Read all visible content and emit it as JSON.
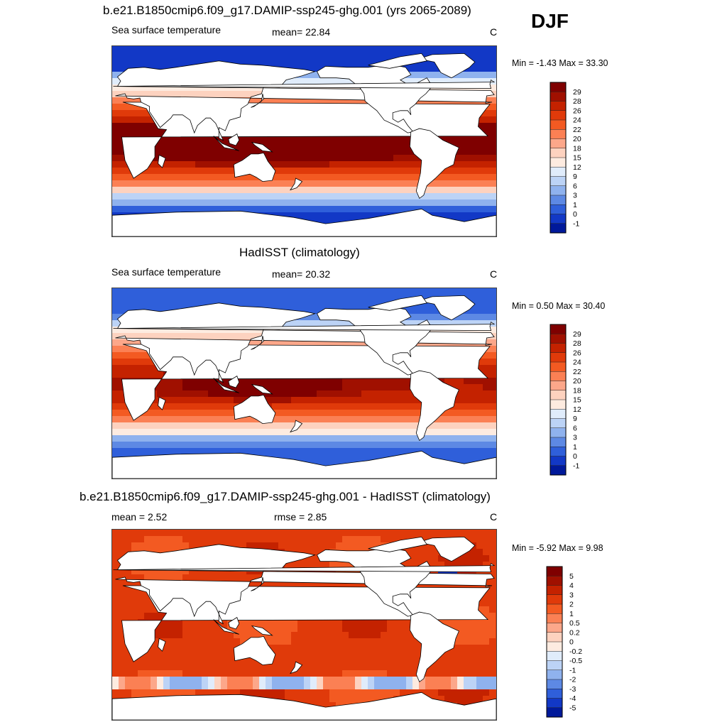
{
  "season": "DJF",
  "chart_data": [
    {
      "type": "heatmap",
      "title": "b.e21.B1850cmip6.f09_g17.DAMIP-ssp245-ghg.001 (yrs 2065-2089)",
      "subtitle_left": "Sea surface temperature",
      "stat_text": "mean=  22.84",
      "units": "C",
      "minmax_text": "Min =  -1.43 Max =  33.30",
      "stats": {
        "mean": 22.84,
        "min": -1.43,
        "max": 33.3
      },
      "colorbar_levels": [
        "29",
        "28",
        "26",
        "24",
        "22",
        "20",
        "18",
        "15",
        "12",
        "9",
        "6",
        "3",
        "1",
        "0",
        "-1"
      ],
      "colorbar_colors": [
        "#7f0000",
        "#a01000",
        "#c42200",
        "#e03a0a",
        "#f35a22",
        "#fb8054",
        "#fca78a",
        "#fdd2bf",
        "#fdebe0",
        "#e0ecfb",
        "#bcd3f6",
        "#8fb2ee",
        "#5d89e4",
        "#2f5fda",
        "#1238c6",
        "#00199a"
      ],
      "map": {
        "lat_range": [
          -90,
          90
        ],
        "lon_range": [
          0,
          360
        ],
        "field": "sst_model",
        "warm_pool_c": 29.5,
        "polar_c": -1
      }
    },
    {
      "type": "heatmap",
      "title": "HadISST (climatology)",
      "subtitle_left": "Sea surface temperature",
      "stat_text": "mean=  20.32",
      "units": "C",
      "minmax_text": "Min =   0.50 Max =  30.40",
      "stats": {
        "mean": 20.32,
        "min": 0.5,
        "max": 30.4
      },
      "colorbar_levels": [
        "29",
        "28",
        "26",
        "24",
        "22",
        "20",
        "18",
        "15",
        "12",
        "9",
        "6",
        "3",
        "1",
        "0",
        "-1"
      ],
      "colorbar_colors": [
        "#7f0000",
        "#a01000",
        "#c42200",
        "#e03a0a",
        "#f35a22",
        "#fb8054",
        "#fca78a",
        "#fdd2bf",
        "#fdebe0",
        "#e0ecfb",
        "#bcd3f6",
        "#8fb2ee",
        "#5d89e4",
        "#2f5fda",
        "#1238c6",
        "#00199a"
      ],
      "map": {
        "lat_range": [
          -90,
          90
        ],
        "lon_range": [
          0,
          360
        ],
        "field": "sst_obs",
        "warm_pool_c": 29,
        "polar_c": 0
      }
    },
    {
      "type": "heatmap",
      "title": "b.e21.B1850cmip6.f09_g17.DAMIP-ssp245-ghg.001 - HadISST (climatology)",
      "subtitle_left": "mean =   2.52",
      "stat_text": "rmse =   2.85",
      "units": "C",
      "minmax_text": "Min =  -5.92 Max =   9.98",
      "stats": {
        "mean": 2.52,
        "rmse": 2.85,
        "min": -5.92,
        "max": 9.98
      },
      "colorbar_levels": [
        "5",
        "4",
        "3",
        "2",
        "1",
        "0.5",
        "0.2",
        "0",
        "-0.2",
        "-0.5",
        "-1",
        "-2",
        "-3",
        "-4",
        "-5"
      ],
      "colorbar_colors": [
        "#7f0000",
        "#a01000",
        "#c42200",
        "#e03a0a",
        "#f35a22",
        "#fb8054",
        "#fca78a",
        "#fdd2bf",
        "#fdebe0",
        "#e0ecfb",
        "#bcd3f6",
        "#8fb2ee",
        "#5d89e4",
        "#2f5fda",
        "#1238c6",
        "#00199a"
      ],
      "map": {
        "lat_range": [
          -90,
          90
        ],
        "lon_range": [
          0,
          360
        ],
        "field": "sst_diff",
        "typical_c": 2.5
      }
    }
  ]
}
